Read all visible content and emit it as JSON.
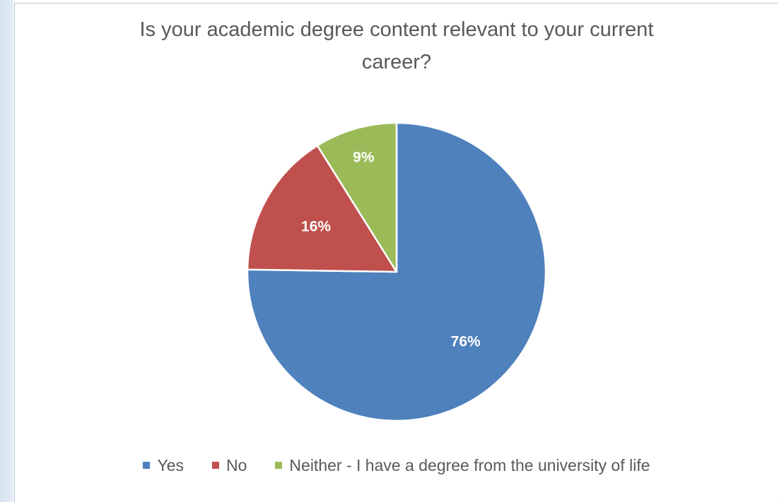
{
  "chart_data": {
    "type": "pie",
    "title": "Is your academic degree content relevant to your current career?",
    "title_lines": [
      "Is your academic degree content relevant to your current",
      "career?"
    ],
    "categories": [
      "Yes",
      "No",
      "Neither - I have a degree from the university of life"
    ],
    "values": [
      76,
      16,
      9
    ],
    "data_labels": [
      "76%",
      "16%",
      "9%"
    ],
    "colors": [
      "#4f81bd",
      "#c0504d",
      "#9bbb59"
    ],
    "start_angle_deg": 0,
    "direction": "clockwise",
    "legend_position": "bottom"
  }
}
